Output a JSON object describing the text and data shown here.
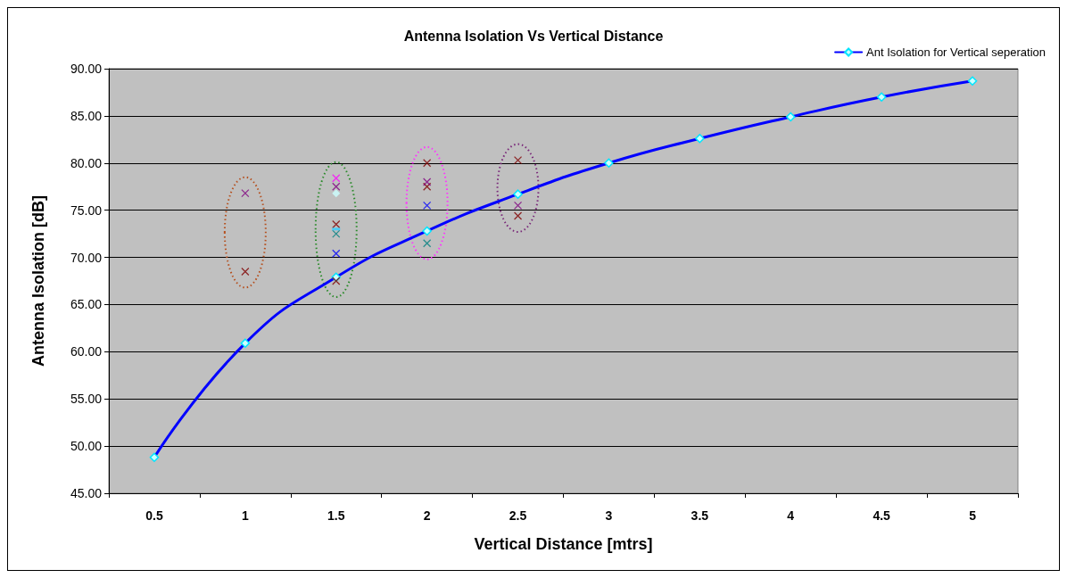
{
  "chart_data": {
    "type": "line",
    "title": "Antenna Isolation Vs Vertical Distance",
    "xlabel": "Vertical Distance [mtrs]",
    "ylabel": "Antenna Isolation [dB]",
    "categories": [
      "0.5",
      "1",
      "1.5",
      "2",
      "2.5",
      "3",
      "3.5",
      "4",
      "4.5",
      "5"
    ],
    "series": [
      {
        "name": "Ant Isolation for Vertical seperation",
        "color": "#0000ff",
        "marker": "diamond",
        "values": [
          48.8,
          60.9,
          67.9,
          72.8,
          76.7,
          80.0,
          82.6,
          84.9,
          87.0,
          88.7
        ]
      },
      {
        "type": "scatter",
        "color": "#800000",
        "marker": "cross",
        "x": [
          "1",
          "1.5",
          "1.5",
          "2",
          "2",
          "2.5",
          "2.5"
        ],
        "values": [
          68.5,
          73.5,
          67.5,
          80.0,
          77.5,
          80.3,
          74.4
        ]
      },
      {
        "type": "scatter",
        "color": "#800080",
        "marker": "cross",
        "x": [
          "1",
          "1.5",
          "2",
          "2.5"
        ],
        "values": [
          76.8,
          77.5,
          78.0,
          75.5
        ]
      },
      {
        "type": "scatter",
        "color": "#0000ff",
        "marker": "cross",
        "x": [
          "1.5",
          "2"
        ],
        "values": [
          70.4,
          75.5
        ]
      },
      {
        "type": "scatter",
        "color": "#008080",
        "marker": "cross",
        "x": [
          "1.5",
          "2"
        ],
        "values": [
          72.5,
          71.5
        ]
      },
      {
        "type": "scatter",
        "color": "#ff00ff",
        "marker": "cross",
        "x": [
          "1.5"
        ],
        "values": [
          78.4
        ]
      },
      {
        "type": "scatter",
        "color": "#ccffff",
        "marker": "diamond",
        "x": [
          "1.5"
        ],
        "values": [
          76.8
        ]
      },
      {
        "type": "scatter",
        "color": "#33ccff",
        "marker": "square",
        "x": [
          "1.5"
        ],
        "values": [
          73.0
        ]
      }
    ],
    "ylim": [
      45,
      90
    ],
    "yticks": [
      {
        "value": 45,
        "label": "45.00"
      },
      {
        "value": 50,
        "label": "50.00"
      },
      {
        "value": 55,
        "label": "55.00"
      },
      {
        "value": 60,
        "label": "60.00"
      },
      {
        "value": 65,
        "label": "65.00"
      },
      {
        "value": 70,
        "label": "70.00"
      },
      {
        "value": 75,
        "label": "75.00"
      },
      {
        "value": 80,
        "label": "80.00"
      },
      {
        "value": 85,
        "label": "85.00"
      },
      {
        "value": 90,
        "label": "90.00"
      }
    ],
    "grid": "y",
    "legend": "top right"
  }
}
